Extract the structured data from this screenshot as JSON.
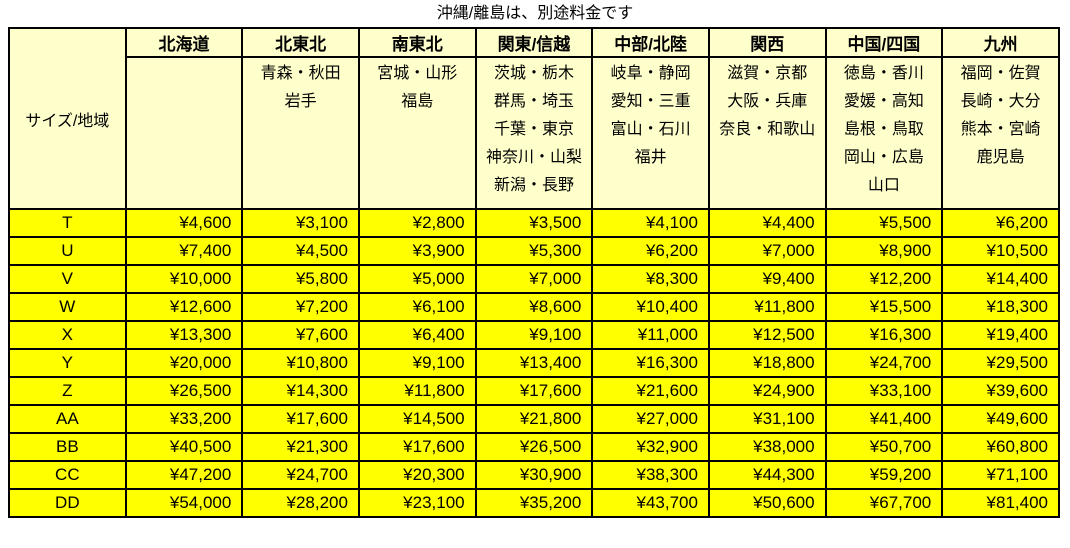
{
  "title": "沖縄/離島は、別途料金です",
  "table": {
    "corner_label": "サイズ/地域",
    "regions": [
      {
        "name": "北海道",
        "prefectures": []
      },
      {
        "name": "北東北",
        "prefectures": [
          "青森・秋田",
          "岩手"
        ]
      },
      {
        "name": "南東北",
        "prefectures": [
          "宮城・山形",
          "福島"
        ]
      },
      {
        "name": "関東/信越",
        "prefectures": [
          "茨城・栃木",
          "群馬・埼玉",
          "千葉・東京",
          "神奈川・山梨",
          "新潟・長野"
        ]
      },
      {
        "name": "中部/北陸",
        "prefectures": [
          "岐阜・静岡",
          "愛知・三重",
          "富山・石川",
          "福井"
        ]
      },
      {
        "name": "関西",
        "prefectures": [
          "滋賀・京都",
          "大阪・兵庫",
          "奈良・和歌山"
        ]
      },
      {
        "name": "中国/四国",
        "prefectures": [
          "徳島・香川",
          "愛媛・高知",
          "島根・鳥取",
          "岡山・広島",
          "山口"
        ]
      },
      {
        "name": "九州",
        "prefectures": [
          "福岡・佐賀",
          "長崎・大分",
          "熊本・宮崎",
          "鹿児島"
        ]
      }
    ],
    "rows": [
      {
        "size": "T",
        "prices": [
          "¥4,600",
          "¥3,100",
          "¥2,800",
          "¥3,500",
          "¥4,100",
          "¥4,400",
          "¥5,500",
          "¥6,200"
        ]
      },
      {
        "size": "U",
        "prices": [
          "¥7,400",
          "¥4,500",
          "¥3,900",
          "¥5,300",
          "¥6,200",
          "¥7,000",
          "¥8,900",
          "¥10,500"
        ]
      },
      {
        "size": "V",
        "prices": [
          "¥10,000",
          "¥5,800",
          "¥5,000",
          "¥7,000",
          "¥8,300",
          "¥9,400",
          "¥12,200",
          "¥14,400"
        ]
      },
      {
        "size": "W",
        "prices": [
          "¥12,600",
          "¥7,200",
          "¥6,100",
          "¥8,600",
          "¥10,400",
          "¥11,800",
          "¥15,500",
          "¥18,300"
        ]
      },
      {
        "size": "X",
        "prices": [
          "¥13,300",
          "¥7,600",
          "¥6,400",
          "¥9,100",
          "¥11,000",
          "¥12,500",
          "¥16,300",
          "¥19,400"
        ]
      },
      {
        "size": "Y",
        "prices": [
          "¥20,000",
          "¥10,800",
          "¥9,100",
          "¥13,400",
          "¥16,300",
          "¥18,800",
          "¥24,700",
          "¥29,500"
        ]
      },
      {
        "size": "Z",
        "prices": [
          "¥26,500",
          "¥14,300",
          "¥11,800",
          "¥17,600",
          "¥21,600",
          "¥24,900",
          "¥33,100",
          "¥39,600"
        ]
      },
      {
        "size": "AA",
        "prices": [
          "¥33,200",
          "¥17,600",
          "¥14,500",
          "¥21,800",
          "¥27,000",
          "¥31,100",
          "¥41,400",
          "¥49,600"
        ]
      },
      {
        "size": "BB",
        "prices": [
          "¥40,500",
          "¥21,300",
          "¥17,600",
          "¥26,500",
          "¥32,900",
          "¥38,000",
          "¥50,700",
          "¥60,800"
        ]
      },
      {
        "size": "CC",
        "prices": [
          "¥47,200",
          "¥24,700",
          "¥20,300",
          "¥30,900",
          "¥38,300",
          "¥44,300",
          "¥59,200",
          "¥71,100"
        ]
      },
      {
        "size": "DD",
        "prices": [
          "¥54,000",
          "¥28,200",
          "¥23,100",
          "¥35,200",
          "¥43,700",
          "¥50,600",
          "¥67,700",
          "¥81,400"
        ]
      }
    ],
    "colors": {
      "header_bg": "#FFFFCC",
      "row_bg": "#FFFF00",
      "border": "#000000",
      "text": "#000000"
    }
  }
}
